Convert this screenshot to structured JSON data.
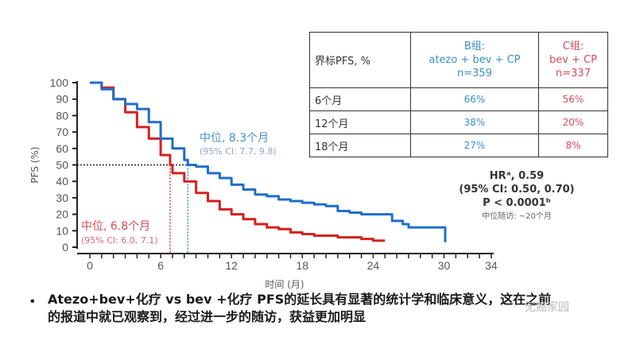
{
  "chart_data": {
    "type": "line",
    "title": "",
    "xlabel": "时间 (月)",
    "ylabel": "PFS (%)",
    "xlim": [
      0,
      34
    ],
    "ylim": [
      0,
      100
    ],
    "x_ticks": [
      0,
      6,
      12,
      18,
      24,
      30,
      34
    ],
    "y_ticks": [
      0,
      10,
      20,
      30,
      40,
      50,
      60,
      70,
      80,
      90,
      100
    ],
    "series": [
      {
        "name": "B组: atezo + bev + CP",
        "color": "#1f6fc8",
        "median_months": 8.3,
        "median_ci": "95% CI: 7.7, 9.8",
        "points": [
          [
            0,
            100
          ],
          [
            1,
            96
          ],
          [
            2,
            90
          ],
          [
            3,
            87
          ],
          [
            4,
            84
          ],
          [
            5,
            76
          ],
          [
            6,
            66
          ],
          [
            7,
            60
          ],
          [
            8,
            53
          ],
          [
            8.3,
            50
          ],
          [
            9,
            49
          ],
          [
            10,
            45
          ],
          [
            11,
            42
          ],
          [
            12,
            38
          ],
          [
            13,
            35
          ],
          [
            14,
            32
          ],
          [
            15,
            31
          ],
          [
            16,
            29
          ],
          [
            17,
            28
          ],
          [
            18,
            27
          ],
          [
            19,
            26
          ],
          [
            20,
            25
          ],
          [
            21,
            22
          ],
          [
            22,
            21
          ],
          [
            23,
            20
          ],
          [
            24,
            20
          ],
          [
            25,
            20
          ],
          [
            25.6,
            16
          ],
          [
            26.5,
            14
          ],
          [
            27,
            12
          ],
          [
            28,
            12
          ],
          [
            29,
            12
          ],
          [
            30,
            12
          ],
          [
            30.1,
            3
          ]
        ]
      },
      {
        "name": "C组: bev + CP",
        "color": "#d62020",
        "median_months": 6.8,
        "median_ci": "95% CI: 6.0, 7.1",
        "points": [
          [
            0,
            100
          ],
          [
            1,
            97
          ],
          [
            2,
            90
          ],
          [
            3,
            82
          ],
          [
            4,
            73
          ],
          [
            5,
            66
          ],
          [
            6,
            56
          ],
          [
            6.8,
            50
          ],
          [
            7,
            45
          ],
          [
            8,
            40
          ],
          [
            9,
            33
          ],
          [
            10,
            28
          ],
          [
            11,
            23
          ],
          [
            12,
            20
          ],
          [
            13,
            17
          ],
          [
            14,
            14
          ],
          [
            15,
            12
          ],
          [
            16,
            11
          ],
          [
            17,
            9
          ],
          [
            18,
            8
          ],
          [
            19,
            7
          ],
          [
            20,
            7
          ],
          [
            21,
            6
          ],
          [
            22,
            6
          ],
          [
            23,
            5
          ],
          [
            24,
            4
          ],
          [
            25,
            4
          ]
        ]
      }
    ],
    "reference_line": {
      "y": 50,
      "style": "dotted"
    },
    "table": {
      "header": [
        "界标PFS, %",
        "B组:\natezo + bev + CP\nn=359",
        "C组:\nbev + CP\nn=337"
      ],
      "rows": [
        [
          "6个月",
          "66%",
          "56%"
        ],
        [
          "12个月",
          "38%",
          "20%"
        ],
        [
          "18个月",
          "27%",
          "8%"
        ]
      ]
    },
    "annotations": [
      "HRᵃ, 0.59",
      "(95% CI: 0.50, 0.70)",
      "P < 0.0001ᵇ",
      "中位随访: ~20个月"
    ]
  },
  "table": {
    "header_label": "界标PFS, %",
    "col_b": {
      "line1": "B组:",
      "line2": "atezo + bev + CP",
      "line3": "n=359"
    },
    "col_c": {
      "line1": "C组:",
      "line2": "bev + CP",
      "line3": "n=337"
    },
    "rows": [
      {
        "label": "6个月",
        "b": "66%",
        "c": "56%"
      },
      {
        "label": "12个月",
        "b": "38%",
        "c": "20%"
      },
      {
        "label": "18个月",
        "b": "27%",
        "c": "8%"
      }
    ]
  },
  "stats": {
    "hr": "HRᵃ, 0.59",
    "ci": "(95% CI: 0.50, 0.70)",
    "p": "P < 0.0001ᵇ",
    "followup": "中位随访: ~20个月"
  },
  "annotations": {
    "blue_median": "中位, 8.3个月",
    "blue_ci": "(95% CI: 7.7, 9.8)",
    "red_median": "中位, 6.8个月",
    "red_ci": "(95% CI: 6.0, 7.1)"
  },
  "axes": {
    "ylabel": "PFS (%)",
    "xlabel": "时间 (月)"
  },
  "bullet": {
    "line1": "Atezo+bev+化疗 vs bev +化疗 PFS的延长具有显著的统计学和临床意义，这在之前",
    "line2": "的报道中就已观察到，经过进一步的随访，获益更加明显"
  },
  "watermark": "无癌家园"
}
